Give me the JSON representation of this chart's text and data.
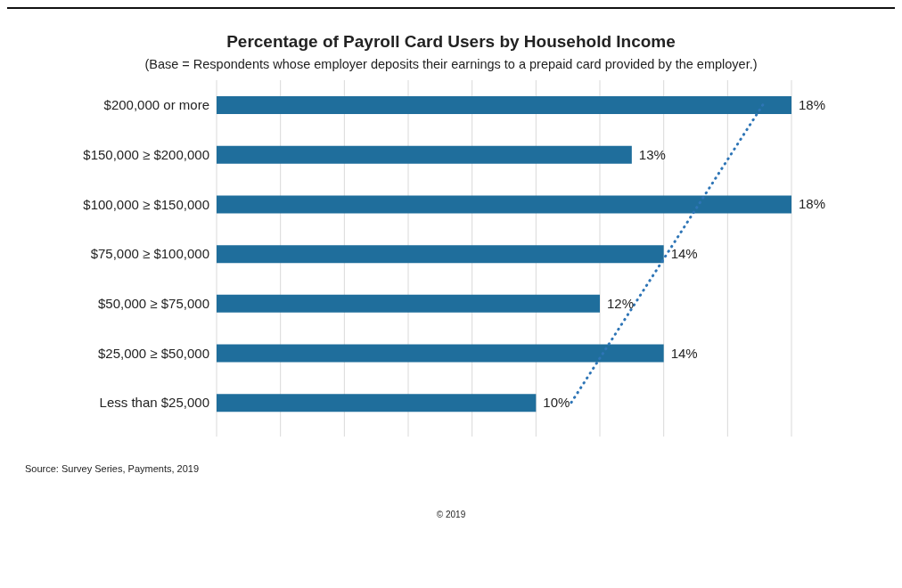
{
  "chart_data": {
    "type": "bar",
    "orientation": "horizontal",
    "title": "Percentage of Payroll Card Users by Household Income",
    "subtitle": "(Base = Respondents whose employer deposits their earnings to a prepaid card provided by the employer.)",
    "categories": [
      "$200,000 or more",
      "$150,000 ≥ $200,000",
      "$100,000 ≥ $150,000",
      "$75,000 ≥ $100,000",
      "$50,000 ≥ $75,000",
      "$25,000 ≥ $50,000",
      "Less than $25,000"
    ],
    "series": [
      {
        "color": "#1f6e9c",
        "values": [
          18,
          13,
          18,
          14,
          12,
          14,
          10
        ],
        "value_labels": [
          "18%",
          "13%",
          "18%",
          "14%",
          "12%",
          "14%",
          "10%"
        ]
      },
      {
        "type": "line",
        "color": "#2e75b6",
        "line_style": "dotted",
        "marker": "none",
        "values": [
          17.1,
          16.1,
          15.1,
          14.1,
          13.1,
          12.1,
          11.1
        ]
      }
    ],
    "xlim": [
      0,
      18
    ],
    "xticks": [
      {
        "value": 0,
        "label": null
      },
      {
        "value": 2,
        "label": null
      },
      {
        "value": 4,
        "label": null
      },
      {
        "value": 6,
        "label": null
      },
      {
        "value": 8,
        "label": null
      },
      {
        "value": 10,
        "label": null
      },
      {
        "value": 12,
        "label": null
      },
      {
        "value": 14,
        "label": null
      },
      {
        "value": 16,
        "label": null
      },
      {
        "value": 18,
        "label": null
      }
    ],
    "grid": "x",
    "tick_labels": "y",
    "legend": false,
    "annotations": [
      "Source: Survey Series, Payments, 2019",
      "© 2019"
    ]
  }
}
